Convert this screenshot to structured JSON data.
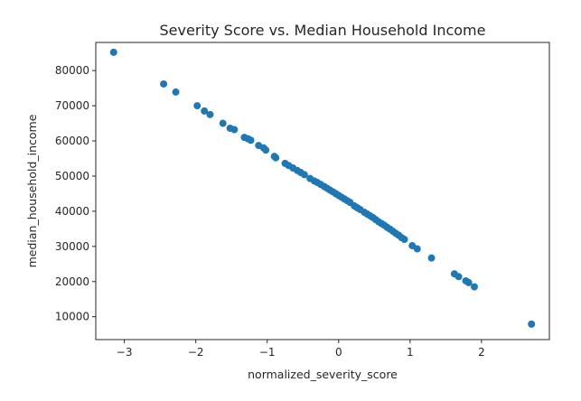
{
  "chart_data": {
    "type": "scatter",
    "title": "Severity Score vs. Median Household Income",
    "xlabel": "normalized_severity_score",
    "ylabel": "median_household_income",
    "xlim": [
      -3.4,
      2.95
    ],
    "ylim": [
      3500,
      88000
    ],
    "x_ticks": [
      -3,
      -2,
      -1,
      0,
      1,
      2
    ],
    "y_ticks": [
      10000,
      20000,
      30000,
      40000,
      50000,
      60000,
      70000,
      80000
    ],
    "grid": false,
    "marker_color": "#1f77b4",
    "series": [
      {
        "points": [
          [
            -3.15,
            85200
          ],
          [
            -2.45,
            76200
          ],
          [
            -2.28,
            73900
          ],
          [
            -1.98,
            70000
          ],
          [
            -1.88,
            68500
          ],
          [
            -1.8,
            67500
          ],
          [
            -1.62,
            65000
          ],
          [
            -1.52,
            63600
          ],
          [
            -1.46,
            63200
          ],
          [
            -1.32,
            61000
          ],
          [
            -1.27,
            60600
          ],
          [
            -1.23,
            60200
          ],
          [
            -1.12,
            58700
          ],
          [
            -1.05,
            58000
          ],
          [
            -1.02,
            57400
          ],
          [
            -0.9,
            55600
          ],
          [
            -0.88,
            55200
          ],
          [
            -0.75,
            53600
          ],
          [
            -0.7,
            53000
          ],
          [
            -0.64,
            52300
          ],
          [
            -0.58,
            51600
          ],
          [
            -0.53,
            51000
          ],
          [
            -0.48,
            50400
          ],
          [
            -0.4,
            49300
          ],
          [
            -0.34,
            48600
          ],
          [
            -0.3,
            48200
          ],
          [
            -0.25,
            47600
          ],
          [
            -0.2,
            47000
          ],
          [
            -0.16,
            46500
          ],
          [
            -0.12,
            46000
          ],
          [
            -0.08,
            45500
          ],
          [
            -0.04,
            45000
          ],
          [
            0.0,
            44500
          ],
          [
            0.04,
            44000
          ],
          [
            0.08,
            43500
          ],
          [
            0.12,
            43000
          ],
          [
            0.16,
            42500
          ],
          [
            0.22,
            41500
          ],
          [
            0.26,
            41000
          ],
          [
            0.3,
            40500
          ],
          [
            0.36,
            39700
          ],
          [
            0.4,
            39200
          ],
          [
            0.44,
            38700
          ],
          [
            0.48,
            38200
          ],
          [
            0.52,
            37600
          ],
          [
            0.56,
            37000
          ],
          [
            0.6,
            36500
          ],
          [
            0.64,
            36000
          ],
          [
            0.68,
            35400
          ],
          [
            0.72,
            34900
          ],
          [
            0.76,
            34300
          ],
          [
            0.8,
            33700
          ],
          [
            0.84,
            33200
          ],
          [
            0.88,
            32500
          ],
          [
            0.92,
            32000
          ],
          [
            1.03,
            30200
          ],
          [
            1.1,
            29300
          ],
          [
            1.3,
            26700
          ],
          [
            1.62,
            22200
          ],
          [
            1.68,
            21400
          ],
          [
            1.78,
            20200
          ],
          [
            1.82,
            19700
          ],
          [
            1.9,
            18500
          ],
          [
            2.7,
            7900
          ]
        ]
      }
    ]
  }
}
